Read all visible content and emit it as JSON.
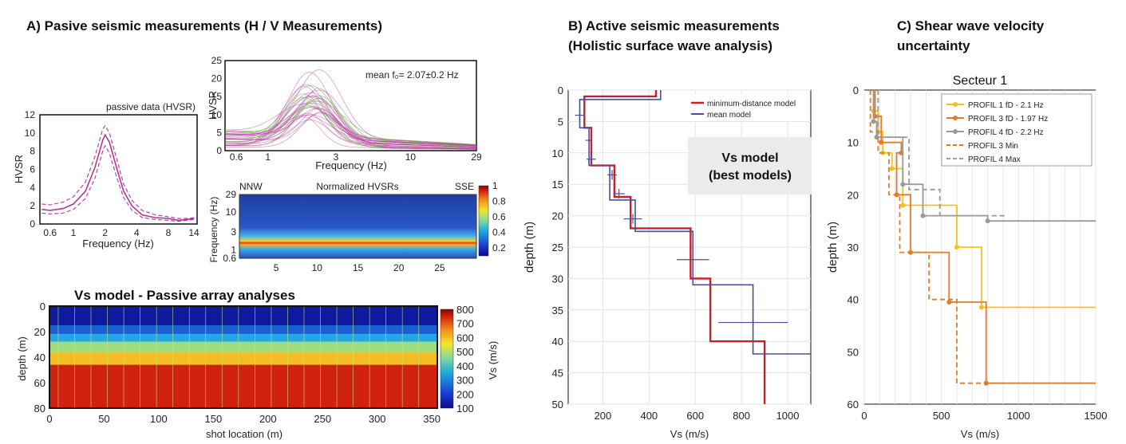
{
  "panel_a": {
    "title": "A) Pasive seismic measurements (H / V Measurements)",
    "vs_title": "Vs model - Passive array analyses"
  },
  "panel_b": {
    "title_line1": "B) Active seismic measurements",
    "title_line2": "(Holistic surface wave analysis)",
    "box_line1": "Vs model",
    "box_line2": "(best models)"
  },
  "panel_c": {
    "title_line1": "C) Shear wave velocity",
    "title_line2": "uncertainty"
  },
  "colors": {
    "hvsr": "#b0399a",
    "green": "#6fbf4a",
    "red": "#c8202a",
    "blue": "#4a4f9a",
    "yellow": "#f5c21a",
    "orange": "#e07b2a",
    "grey": "#9a9a9a"
  },
  "chart_data": [
    {
      "id": "hvsr_passive",
      "type": "line",
      "title": "passive data (HVSR)",
      "xlabel": "Frequency (Hz)",
      "ylabel": "HVSR",
      "x_ticks": [
        "0.6",
        "1",
        "2",
        "4",
        "8",
        "14"
      ],
      "y_ticks": [
        "0",
        "2",
        "4",
        "6",
        "8",
        "10",
        "12"
      ],
      "ylim": [
        0,
        12
      ],
      "x_log": true,
      "series": [
        {
          "role": "mean",
          "x": [
            0.5,
            0.6,
            0.8,
            1.0,
            1.3,
            1.6,
            1.9,
            2.0,
            2.2,
            2.6,
            3.0,
            3.6,
            4.5,
            6,
            8,
            10,
            12,
            14
          ],
          "y": [
            1.6,
            1.5,
            1.7,
            2.2,
            3.6,
            6.2,
            9.2,
            9.8,
            9.0,
            6.0,
            3.6,
            2.0,
            1.0,
            0.7,
            0.6,
            0.4,
            0.5,
            0.6
          ]
        },
        {
          "role": "upper",
          "x": [
            0.5,
            0.6,
            0.8,
            1.0,
            1.3,
            1.6,
            1.9,
            2.0,
            2.2,
            2.6,
            3.0,
            3.6,
            4.5,
            6,
            8,
            10,
            12,
            14
          ],
          "y": [
            2.2,
            2.1,
            2.4,
            3.0,
            4.6,
            7.4,
            10.4,
            10.8,
            10.0,
            7.0,
            4.4,
            2.6,
            1.5,
            1.0,
            0.8,
            0.6,
            0.6,
            0.7
          ]
        },
        {
          "role": "lower",
          "x": [
            0.5,
            0.6,
            0.8,
            1.0,
            1.3,
            1.6,
            1.9,
            2.0,
            2.2,
            2.6,
            3.0,
            3.6,
            4.5,
            6,
            8,
            10,
            12,
            14
          ],
          "y": [
            1.2,
            1.1,
            1.2,
            1.6,
            2.8,
            5.0,
            8.0,
            8.6,
            7.8,
            5.0,
            2.9,
            1.5,
            0.7,
            0.5,
            0.4,
            0.3,
            0.4,
            0.5
          ]
        }
      ]
    },
    {
      "id": "hvsr_curves",
      "type": "line",
      "annotation": "mean f₀= 2.07±0.2 Hz",
      "xlabel": "Frequency (Hz)",
      "ylabel": "HVSR",
      "x_ticks": [
        "0.6",
        "1",
        "3",
        "10",
        "29"
      ],
      "y_ticks": [
        "0",
        "5",
        "10",
        "15",
        "20",
        "25"
      ],
      "ylim": [
        0,
        25
      ],
      "x_log": true,
      "mean_peak": {
        "f0": 2.07,
        "amplitude": 18
      }
    },
    {
      "id": "normalized_hvsr",
      "type": "heatmap",
      "title": "Normalized HVSRs",
      "left_label": "NNW",
      "right_label": "SSE",
      "ylabel": "Frequency (Hz)",
      "x_ticks": [
        "5",
        "10",
        "15",
        "20",
        "25"
      ],
      "y_ticks": [
        "29",
        "10",
        "3",
        "1",
        "0.6"
      ],
      "colorbar_ticks": [
        "1",
        "0.8",
        "0.6",
        "0.4",
        "0.2"
      ],
      "peak_frequency": 2.07
    },
    {
      "id": "vs_passive",
      "type": "heatmap",
      "xlabel": "shot location (m)",
      "ylabel": "depth (m)",
      "x_ticks": [
        "0",
        "50",
        "100",
        "150",
        "200",
        "250",
        "300",
        "350"
      ],
      "y_ticks": [
        "0",
        "20",
        "40",
        "60",
        "80"
      ],
      "colorbar_label": "Vs (m/s)",
      "colorbar_ticks": [
        "800",
        "700",
        "600",
        "500",
        "400",
        "300",
        "200",
        "100"
      ],
      "layers": [
        {
          "top": 0,
          "bottom": 15,
          "vs": 130
        },
        {
          "top": 15,
          "bottom": 22,
          "vs": 250
        },
        {
          "top": 22,
          "bottom": 28,
          "vs": 350
        },
        {
          "top": 28,
          "bottom": 36,
          "vs": 480
        },
        {
          "top": 36,
          "bottom": 46,
          "vs": 600
        },
        {
          "top": 46,
          "bottom": 80,
          "vs": 750
        }
      ]
    },
    {
      "id": "active_vs",
      "type": "line",
      "xlabel": "Vs (m/s)",
      "ylabel": "depth (m)",
      "x_ticks": [
        "200",
        "400",
        "600",
        "800",
        "1000"
      ],
      "y_ticks": [
        "0",
        "5",
        "10",
        "15",
        "20",
        "25",
        "30",
        "35",
        "40",
        "45",
        "50"
      ],
      "xlim": [
        50,
        1100
      ],
      "ylim": [
        0,
        50
      ],
      "series": [
        {
          "name": "minimum-distance model",
          "steps": [
            [
              430,
              0
            ],
            [
              430,
              1
            ],
            [
              120,
              1
            ],
            [
              120,
              6
            ],
            [
              150,
              6
            ],
            [
              150,
              12
            ],
            [
              250,
              12
            ],
            [
              250,
              17
            ],
            [
              320,
              17
            ],
            [
              320,
              22
            ],
            [
              580,
              22
            ],
            [
              580,
              30
            ],
            [
              665,
              30
            ],
            [
              665,
              40
            ],
            [
              900,
              40
            ],
            [
              900,
              50
            ]
          ]
        },
        {
          "name": "mean model",
          "steps": [
            [
              450,
              0
            ],
            [
              450,
              1.5
            ],
            [
              100,
              1.5
            ],
            [
              100,
              6
            ],
            [
              140,
              6
            ],
            [
              140,
              12
            ],
            [
              230,
              12
            ],
            [
              230,
              17.5
            ],
            [
              340,
              17.5
            ],
            [
              340,
              22.5
            ],
            [
              590,
              22.5
            ],
            [
              590,
              31
            ],
            [
              850,
              31
            ],
            [
              850,
              42
            ],
            [
              1100,
              42
            ]
          ]
        }
      ],
      "error_bars": [
        [
          100,
          4,
          20,
          0
        ],
        [
          140,
          8,
          15,
          0
        ],
        [
          150,
          11,
          20,
          0
        ],
        [
          240,
          13.5,
          20,
          0
        ],
        [
          270,
          16.5,
          25,
          0
        ],
        [
          330,
          20.5,
          40,
          0
        ],
        [
          590,
          27,
          70,
          0
        ],
        [
          850,
          37,
          150,
          0
        ]
      ]
    },
    {
      "id": "vs_uncertainty",
      "type": "line",
      "title": "Secteur 1",
      "xlabel": "Vs (m/s)",
      "ylabel": "depth (m)",
      "x_ticks": [
        "0",
        "500",
        "1000",
        "1500"
      ],
      "y_ticks": [
        "0",
        "10",
        "20",
        "30",
        "40",
        "50",
        "60"
      ],
      "xlim": [
        0,
        1500
      ],
      "ylim": [
        0,
        60
      ],
      "series": [
        {
          "name": "PROFIL 1 fD - 2.1 Hz",
          "color_key": "yellow",
          "dashed": false,
          "steps": [
            [
              60,
              0
            ],
            [
              60,
              4
            ],
            [
              90,
              4
            ],
            [
              90,
              8
            ],
            [
              120,
              8
            ],
            [
              120,
              12
            ],
            [
              180,
              12
            ],
            [
              180,
              15
            ],
            [
              250,
              15
            ],
            [
              250,
              22
            ],
            [
              600,
              22
            ],
            [
              600,
              30
            ],
            [
              760,
              30
            ],
            [
              760,
              41.5
            ],
            [
              1500,
              41.5
            ]
          ]
        },
        {
          "name": "PROFIL 3 fD - 1.97 Hz",
          "color_key": "orange",
          "dashed": false,
          "steps": [
            [
              70,
              0
            ],
            [
              70,
              5
            ],
            [
              110,
              5
            ],
            [
              110,
              10
            ],
            [
              240,
              10
            ],
            [
              240,
              12
            ],
            [
              210,
              12
            ],
            [
              210,
              20
            ],
            [
              300,
              20
            ],
            [
              300,
              31
            ],
            [
              550,
              31
            ],
            [
              550,
              40.5
            ],
            [
              790,
              40.5
            ],
            [
              790,
              56
            ],
            [
              1500,
              56
            ]
          ]
        },
        {
          "name": "PROFIL 4 fD - 2.2 Hz",
          "color_key": "grey",
          "dashed": false,
          "steps": [
            [
              60,
              0
            ],
            [
              60,
              6
            ],
            [
              80,
              6
            ],
            [
              80,
              9
            ],
            [
              250,
              9
            ],
            [
              250,
              18
            ],
            [
              380,
              18
            ],
            [
              380,
              24
            ],
            [
              800,
              24
            ],
            [
              800,
              25
            ],
            [
              1500,
              25
            ]
          ]
        },
        {
          "name": "PROFIL 3 Min",
          "color_key": "orange",
          "dashed": true,
          "steps": [
            [
              40,
              0
            ],
            [
              40,
              8
            ],
            [
              90,
              8
            ],
            [
              90,
              12
            ],
            [
              160,
              12
            ],
            [
              160,
              20
            ],
            [
              230,
              20
            ],
            [
              230,
              31
            ],
            [
              420,
              31
            ],
            [
              420,
              40
            ],
            [
              600,
              40
            ],
            [
              600,
              56
            ],
            [
              790,
              56
            ]
          ]
        },
        {
          "name": "PROFIL 4 Max",
          "color_key": "grey",
          "dashed": true,
          "steps": [
            [
              90,
              0
            ],
            [
              90,
              9
            ],
            [
              290,
              9
            ],
            [
              290,
              19
            ],
            [
              490,
              19
            ],
            [
              490,
              24
            ],
            [
              930,
              24
            ]
          ]
        }
      ]
    }
  ]
}
